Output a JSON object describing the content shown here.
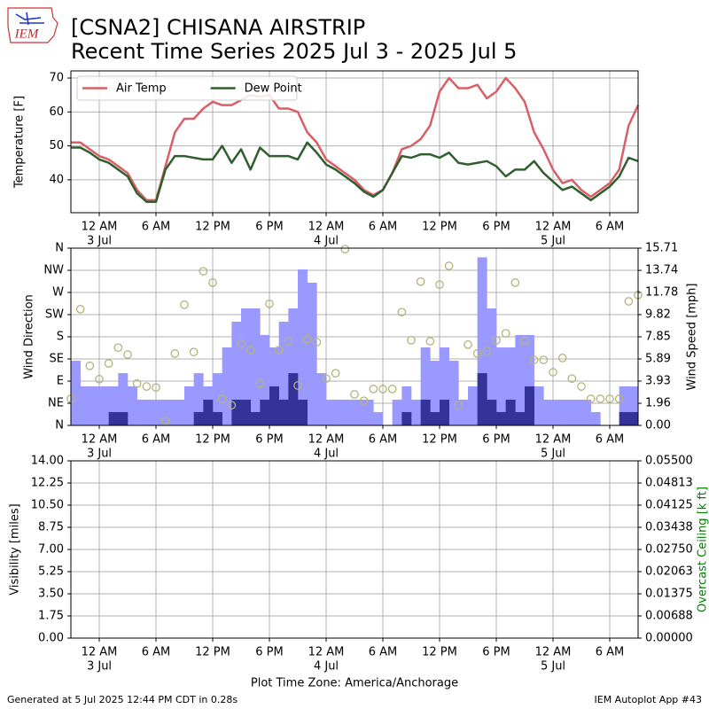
{
  "header": {
    "logo": "IEM",
    "title": "[CSNA2] CHISANA AIRSTRIP",
    "subtitle": "Recent Time Series 2025 Jul 3 - 2025 Jul 5"
  },
  "chart_data": [
    {
      "type": "line",
      "ylabel": "Temperature [F]",
      "grid": true,
      "legend": "upper left",
      "xlim": [
        -3,
        57
      ],
      "xticks": [
        {
          "value": 0,
          "label": "12 AM"
        },
        {
          "value": 6,
          "label": "6 AM"
        },
        {
          "value": 12,
          "label": "12 PM"
        },
        {
          "value": 18,
          "label": "6 PM"
        },
        {
          "value": 24,
          "label": "12 AM"
        },
        {
          "value": 30,
          "label": "6 AM"
        },
        {
          "value": 36,
          "label": "12 PM"
        },
        {
          "value": 42,
          "label": "6 PM"
        },
        {
          "value": 48,
          "label": "12 AM"
        },
        {
          "value": 54,
          "label": "6 AM"
        }
      ],
      "xtick_dates": [
        {
          "value": 0,
          "label": "3 Jul"
        },
        {
          "value": 24,
          "label": "4 Jul"
        },
        {
          "value": 48,
          "label": "5 Jul"
        }
      ],
      "ylim": [
        30.3,
        72.1
      ],
      "yticks": [
        40,
        50,
        60,
        70
      ],
      "x": [
        -3,
        -2,
        -1,
        0,
        1,
        2,
        3,
        4,
        5,
        6,
        7,
        8,
        9,
        10,
        11,
        12,
        13,
        14,
        15,
        16,
        17,
        18,
        19,
        20,
        21,
        22,
        23,
        24,
        25,
        26,
        27,
        28,
        29,
        30,
        31,
        32,
        33,
        34,
        35,
        36,
        37,
        38,
        39,
        40,
        41,
        42,
        43,
        44,
        45,
        46,
        47,
        48,
        49,
        50,
        51,
        52,
        53,
        54,
        55,
        56,
        57
      ],
      "series": [
        {
          "name": "Air Temp",
          "color": "#d95f64",
          "values": [
            51,
            51,
            49,
            47,
            46,
            44,
            42,
            37,
            34,
            34,
            44,
            54,
            58,
            58,
            61,
            63,
            62,
            62,
            63.5,
            65,
            64.5,
            65,
            61,
            61,
            60,
            54,
            51,
            46,
            44,
            42,
            40,
            37,
            35.5,
            37,
            42,
            49,
            50,
            52,
            56,
            66,
            70,
            67,
            67,
            68,
            64,
            66,
            70,
            67,
            63,
            54,
            49,
            43,
            39,
            40,
            37,
            35,
            37,
            39,
            43,
            56,
            62
          ]
        },
        {
          "name": "Dew Point",
          "color": "#2f5f2f",
          "values": [
            49.5,
            49.5,
            48,
            46,
            45,
            43,
            41,
            36,
            33.5,
            33.5,
            43,
            47,
            47,
            46.5,
            46,
            46,
            50,
            45,
            49,
            43,
            49.5,
            47,
            47,
            47,
            46,
            51,
            48,
            44.5,
            43,
            41,
            39,
            36.5,
            35,
            37,
            42,
            47,
            46.5,
            47.5,
            47.5,
            46.5,
            48,
            45,
            44.5,
            45,
            45.5,
            44,
            41,
            43,
            43,
            45.5,
            42,
            39.5,
            37,
            38,
            36,
            34,
            36,
            38,
            41,
            46.5,
            45.5
          ]
        }
      ]
    },
    {
      "type": "bar",
      "ylabel": "Wind Direction",
      "y2label": "Wind Speed [mph]",
      "grid": true,
      "xlim": [
        -3,
        57
      ],
      "xticks": [
        {
          "value": 0,
          "label": "12 AM"
        },
        {
          "value": 6,
          "label": "6 AM"
        },
        {
          "value": 12,
          "label": "12 PM"
        },
        {
          "value": 18,
          "label": "6 PM"
        },
        {
          "value": 24,
          "label": "12 AM"
        },
        {
          "value": 30,
          "label": "6 AM"
        },
        {
          "value": 36,
          "label": "12 PM"
        },
        {
          "value": 42,
          "label": "6 PM"
        },
        {
          "value": 48,
          "label": "12 AM"
        },
        {
          "value": 54,
          "label": "6 AM"
        }
      ],
      "xtick_dates": [
        {
          "value": 0,
          "label": "3 Jul"
        },
        {
          "value": 24,
          "label": "4 Jul"
        },
        {
          "value": 48,
          "label": "5 Jul"
        }
      ],
      "ylim": [
        0,
        360
      ],
      "yticks": [
        {
          "value": 0,
          "label": "N"
        },
        {
          "value": 45,
          "label": "NE"
        },
        {
          "value": 90,
          "label": "E"
        },
        {
          "value": 135,
          "label": "SE"
        },
        {
          "value": 180,
          "label": "S"
        },
        {
          "value": 225,
          "label": "SW"
        },
        {
          "value": 270,
          "label": "W"
        },
        {
          "value": 315,
          "label": "NW"
        },
        {
          "value": 360,
          "label": "N"
        }
      ],
      "y2lim": [
        0,
        15.71
      ],
      "y2ticks": [
        {
          "value": 0,
          "label": "0.00"
        },
        1.96,
        3.93,
        5.89,
        7.85,
        9.82,
        11.78,
        13.74,
        15.71
      ],
      "series": [
        {
          "axis": "y2",
          "color": "#9999ff",
          "x": [
            -3,
            -2,
            -1,
            0,
            1,
            2,
            3,
            4,
            5,
            6,
            7,
            8,
            9,
            10,
            11,
            12,
            13,
            14,
            15,
            16,
            17,
            18,
            19,
            20,
            21,
            22,
            23,
            24,
            25,
            26,
            27,
            28,
            29,
            30,
            31,
            32,
            33,
            34,
            35,
            36,
            37,
            38,
            39,
            40,
            41,
            42,
            43,
            44,
            45,
            46,
            47,
            48,
            49,
            50,
            51,
            52,
            53,
            54,
            55,
            56
          ],
          "values": [
            5.73,
            3.46,
            3.46,
            3.46,
            3.46,
            4.63,
            3.46,
            2.28,
            2.28,
            2.28,
            2.28,
            2.28,
            3.46,
            4.63,
            3.46,
            4.63,
            6.91,
            9.19,
            10.37,
            10.37,
            8.01,
            6.91,
            9.19,
            10.37,
            13.82,
            12.65,
            4.63,
            2.28,
            2.28,
            2.28,
            2.28,
            2.28,
            1.18,
            0,
            2.28,
            3.46,
            2.28,
            6.91,
            5.73,
            6.91,
            5.73,
            2.28,
            3.46,
            14.9,
            10.37,
            6.91,
            6.91,
            8.01,
            8.01,
            3.46,
            2.28,
            2.28,
            2.28,
            2.28,
            2.28,
            1.18,
            0,
            0,
            3.46,
            3.46
          ]
        },
        {
          "axis": "y2",
          "color": "#333399",
          "x": [
            -3,
            -2,
            -1,
            0,
            1,
            2,
            3,
            4,
            5,
            6,
            7,
            8,
            9,
            10,
            11,
            12,
            13,
            14,
            15,
            16,
            17,
            18,
            19,
            20,
            21,
            22,
            23,
            24,
            25,
            26,
            27,
            28,
            29,
            30,
            31,
            32,
            33,
            34,
            35,
            36,
            37,
            38,
            39,
            40,
            41,
            42,
            43,
            44,
            45,
            46,
            47,
            48,
            49,
            50,
            51,
            52,
            53,
            54,
            55,
            56
          ],
          "values": [
            0,
            0,
            0,
            0,
            1.18,
            1.18,
            0,
            0,
            0,
            0,
            0,
            0,
            0,
            1.18,
            2.28,
            1.18,
            0,
            2.28,
            2.28,
            1.18,
            2.28,
            3.46,
            2.28,
            4.63,
            2.28,
            0,
            0,
            0,
            0,
            0,
            0,
            0,
            0,
            0,
            0,
            1.18,
            0,
            2.28,
            1.18,
            2.28,
            0,
            0,
            0,
            4.63,
            2.28,
            1.18,
            2.28,
            1.18,
            3.46,
            0,
            0,
            0,
            0,
            0,
            0,
            0,
            0,
            0,
            1.18,
            1.18
          ]
        },
        {
          "type": "scatter",
          "color": "#b4b47a",
          "x": [
            -3,
            -2,
            -1,
            0,
            1,
            2,
            3,
            4,
            5,
            6,
            7,
            8,
            9,
            10,
            11,
            12,
            13,
            14,
            15,
            16,
            17,
            18,
            19,
            20,
            21,
            22,
            23,
            24,
            25,
            26,
            27,
            28,
            29,
            30,
            31,
            32,
            33,
            34,
            35,
            36,
            37,
            38,
            39,
            40,
            41,
            42,
            43,
            44,
            45,
            46,
            47,
            48,
            49,
            50,
            51,
            52,
            53,
            54,
            55,
            56,
            57
          ],
          "values": [
            54,
            236,
            121,
            94,
            126,
            158,
            144,
            85,
            79,
            77,
            9,
            146,
            245,
            149,
            313,
            290,
            54,
            41,
            166,
            153,
            85,
            247,
            153,
            171,
            81,
            175,
            169,
            95,
            106,
            358,
            63,
            50,
            74,
            74,
            74,
            230,
            173,
            292,
            171,
            286,
            324,
            41,
            164,
            146,
            151,
            173,
            187,
            290,
            171,
            133,
            133,
            108,
            137,
            95,
            79,
            54,
            54,
            54,
            54,
            252,
            265
          ]
        }
      ]
    },
    {
      "type": "line",
      "ylabel": "Visibility [miles]",
      "y2label": "Overcast Ceiling [k ft]",
      "y2color": "#008000",
      "grid": true,
      "xlabel": "Plot Time Zone: America/Anchorage",
      "xlim": [
        -3,
        57
      ],
      "xticks": [
        {
          "value": 0,
          "label": "12 AM"
        },
        {
          "value": 6,
          "label": "6 AM"
        },
        {
          "value": 12,
          "label": "12 PM"
        },
        {
          "value": 18,
          "label": "6 PM"
        },
        {
          "value": 24,
          "label": "12 AM"
        },
        {
          "value": 30,
          "label": "6 AM"
        },
        {
          "value": 36,
          "label": "12 PM"
        },
        {
          "value": 42,
          "label": "6 PM"
        },
        {
          "value": 48,
          "label": "12 AM"
        },
        {
          "value": 54,
          "label": "6 AM"
        }
      ],
      "xtick_dates": [
        {
          "value": 0,
          "label": "3 Jul"
        },
        {
          "value": 24,
          "label": "4 Jul"
        },
        {
          "value": 48,
          "label": "5 Jul"
        }
      ],
      "ylim": [
        0,
        14
      ],
      "yticks": [
        {
          "value": 0,
          "label": "0.00"
        },
        1.75,
        {
          "value": 3.5,
          "label": "3.50"
        },
        5.25,
        {
          "value": 7,
          "label": "7.00"
        },
        8.75,
        {
          "value": 10.5,
          "label": "10.50"
        },
        12.25,
        {
          "value": 14,
          "label": "14.00"
        }
      ],
      "y2lim": [
        0,
        0.055
      ],
      "y2ticks": [
        {
          "value": 0,
          "label": "0.00000"
        },
        {
          "value": 0.006875,
          "label": "0.00688"
        },
        {
          "value": 0.01375,
          "label": "0.01375"
        },
        {
          "value": 0.020625,
          "label": "0.02063"
        },
        {
          "value": 0.0275,
          "label": "0.02750"
        },
        {
          "value": 0.034375,
          "label": "0.03438"
        },
        {
          "value": 0.04125,
          "label": "0.04125"
        },
        {
          "value": 0.048125,
          "label": "0.04813"
        },
        {
          "value": 0.055,
          "label": "0.05500"
        }
      ],
      "series": []
    }
  ],
  "footer": {
    "left": "Generated at 5 Jul 2025 12:44 PM CDT in 0.28s",
    "right": "IEM Autoplot App #43"
  }
}
